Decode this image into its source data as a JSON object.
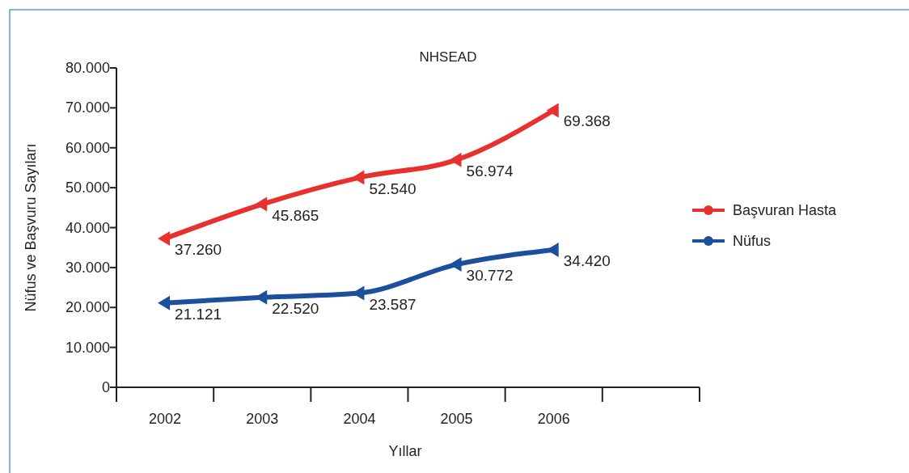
{
  "chart_data": {
    "type": "line",
    "title": "NHSEAD",
    "xlabel": "Yıllar",
    "ylabel": "Nüfus ve Başvuru Sayıları",
    "categories": [
      "2002",
      "2003",
      "2004",
      "2005",
      "2006",
      null
    ],
    "series": [
      {
        "name": "Başvuran Hasta",
        "color": "#e8312f",
        "values": [
          37260,
          45865,
          52540,
          56974,
          69368,
          null
        ],
        "value_labels": [
          "37.260",
          "45.865",
          "52.540",
          "56.974",
          "69.368",
          null
        ]
      },
      {
        "name": "Nüfus",
        "color": "#1c4f9c",
        "values": [
          21121,
          22520,
          23587,
          30772,
          34420,
          null
        ],
        "value_labels": [
          "21.121",
          "22.520",
          "23.587",
          "30.772",
          "34.420",
          null
        ]
      }
    ],
    "ylim": [
      0,
      80000
    ],
    "yticks": [
      {
        "value": 0,
        "label": "0"
      },
      {
        "value": 10000,
        "label": "10.000"
      },
      {
        "value": 20000,
        "label": "20.000"
      },
      {
        "value": 30000,
        "label": "30.000"
      },
      {
        "value": 40000,
        "label": "40.000"
      },
      {
        "value": 50000,
        "label": "50.000"
      },
      {
        "value": 60000,
        "label": "60.000"
      },
      {
        "value": 70000,
        "label": "70.000"
      },
      {
        "value": 80000,
        "label": "80.000"
      }
    ],
    "grid": false,
    "legend": "right",
    "marker": "triangle",
    "line_style": "solid"
  }
}
